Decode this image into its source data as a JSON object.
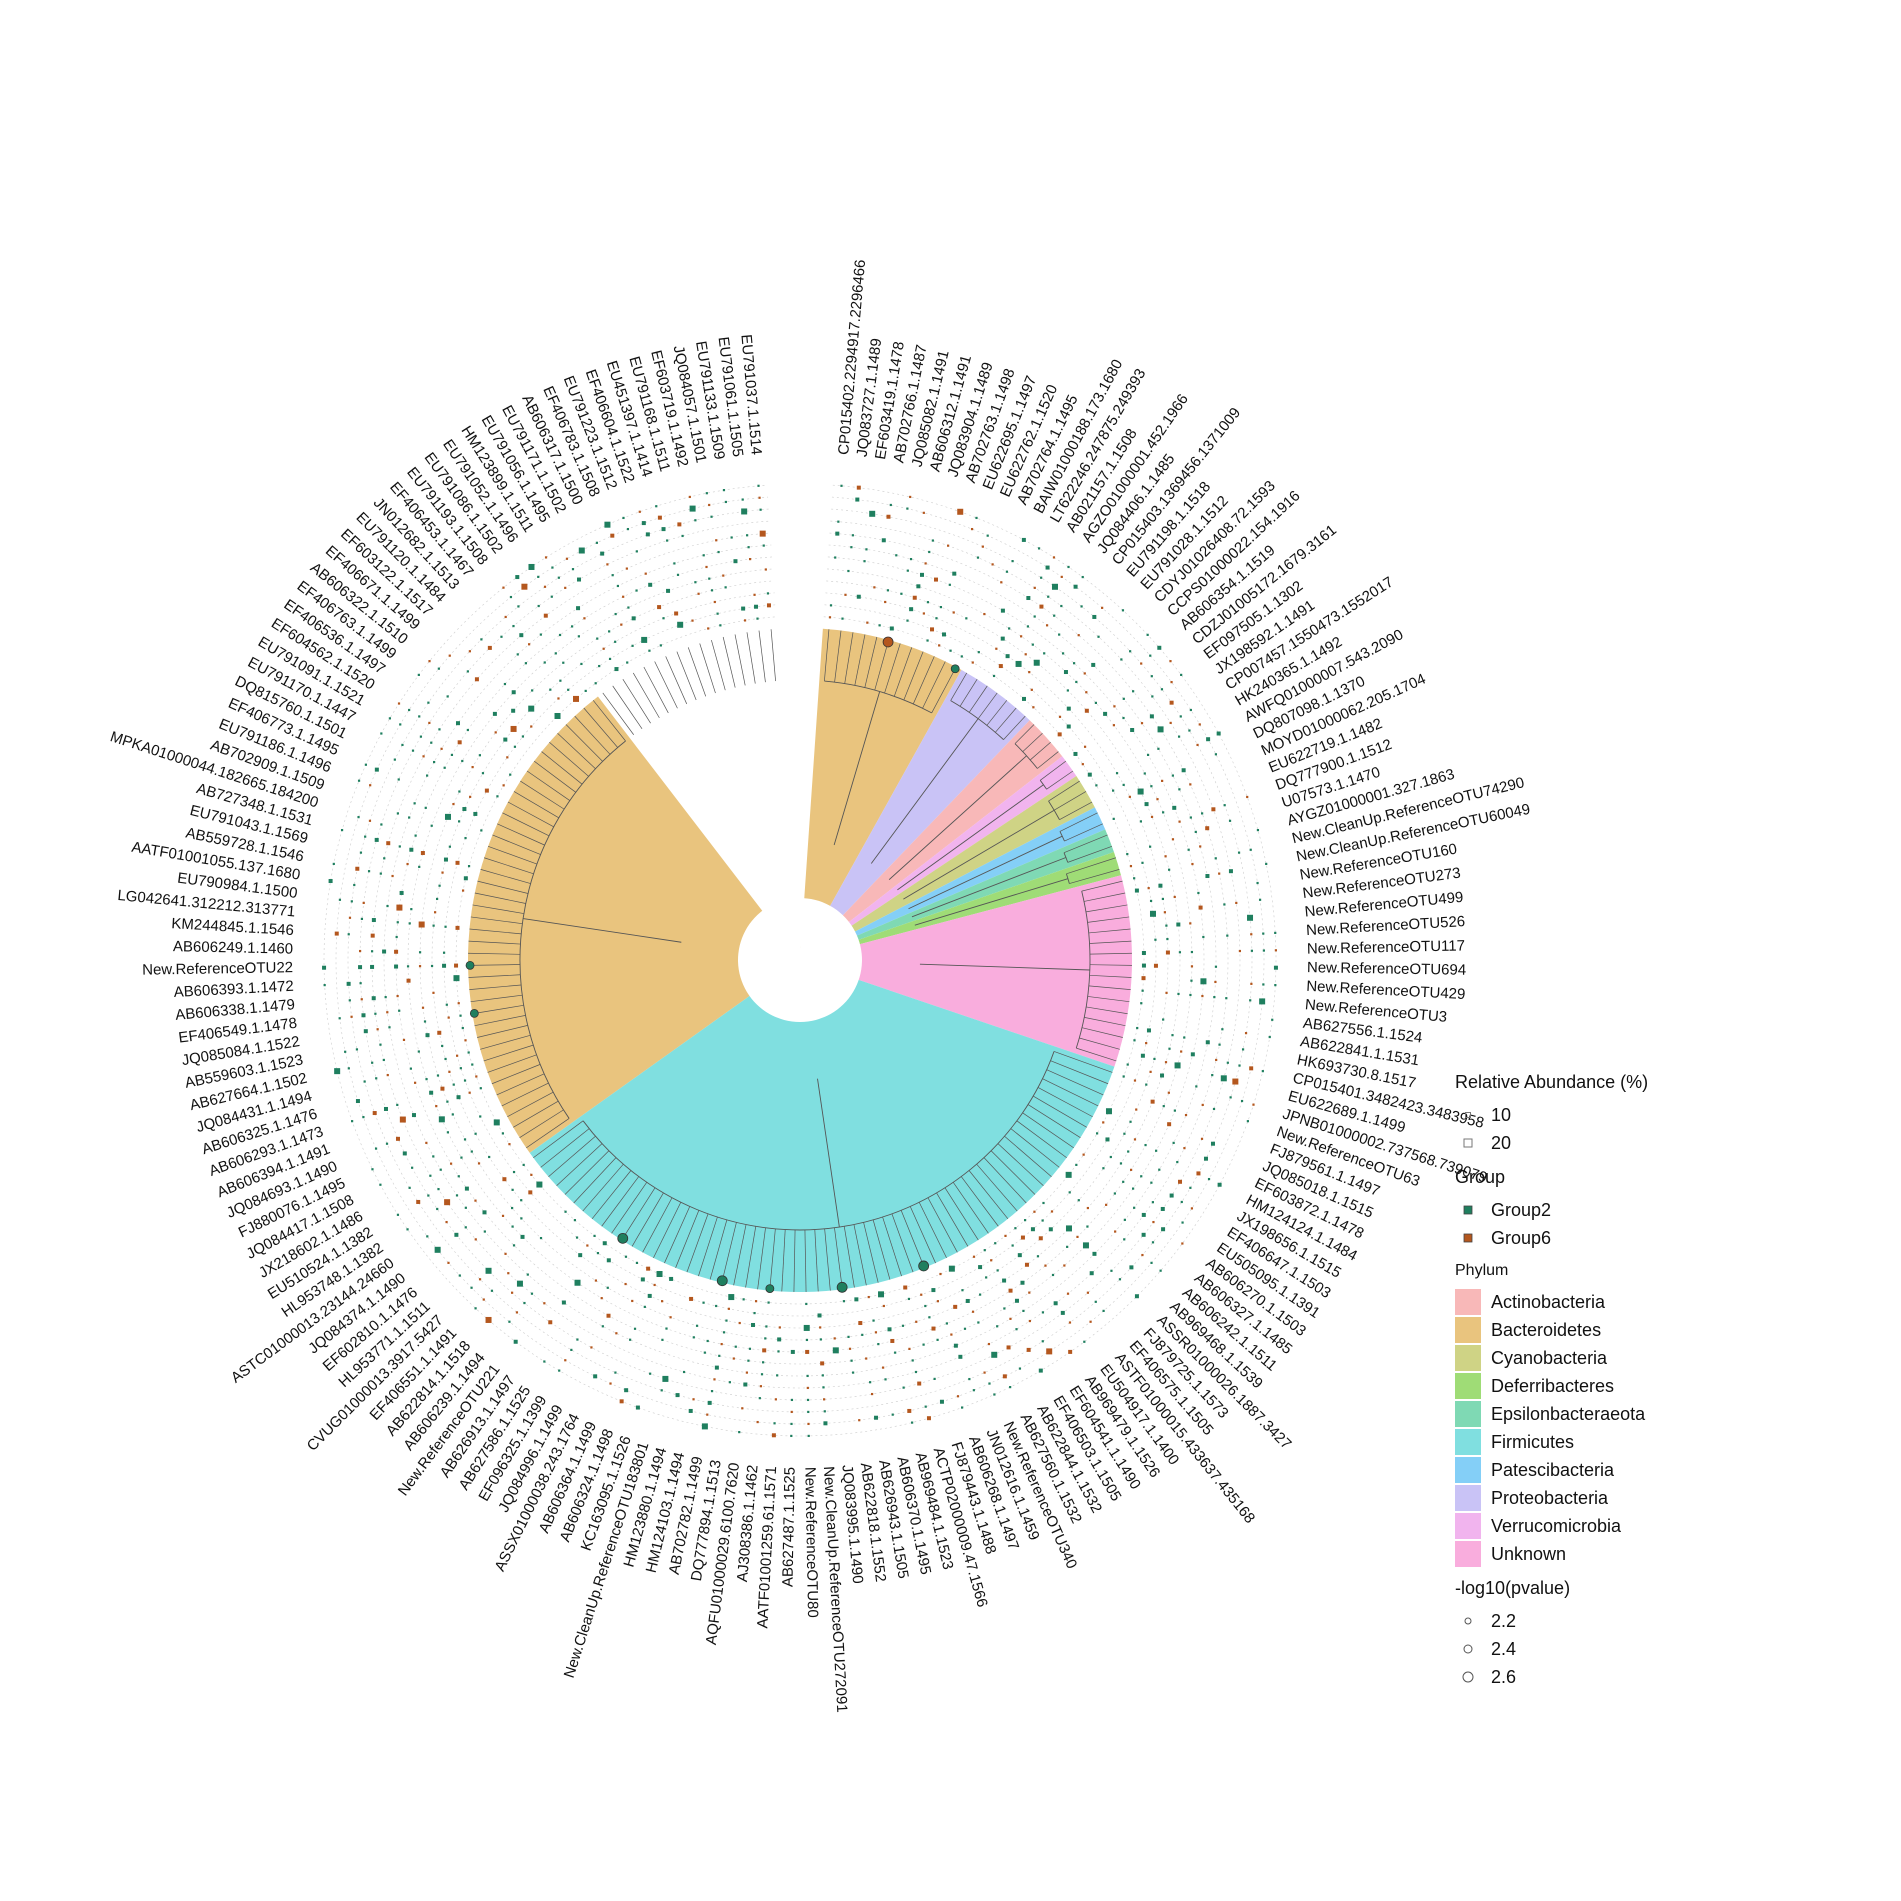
{
  "tips": [
    "CP015402.2294917.2296466",
    "JQ083727.1.1489",
    "EF603419.1.1478",
    "AB702766.1.1487",
    "JQ085082.1.1491",
    "AB606312.1.1491",
    "JQ083904.1.1489",
    "AB702763.1.1498",
    "EU622695.1.1497",
    "EU622762.1.1520",
    "AB702764.1.1495",
    "BAIW01000188.173.1680",
    "LT622246.247875.249393",
    "AB021157.1.1508",
    "AGZO01000001.452.1966",
    "JQ084406.1.1485",
    "CP015403.1369456.1371009",
    "EU791198.1.1518",
    "EU791028.1.1512",
    "CDYJ01026408.72.1593",
    "CCPS01000022.154.1916",
    "AB606354.1.1519",
    "CDZJ01005172.1679.3161",
    "EF097505.1.1302",
    "JX198592.1.1491",
    "CP007457.1550473.1552017",
    "HK240365.1.1492",
    "AWFQ01000007.543.2090",
    "DQ807098.1.1370",
    "MOYD01000062.205.1704",
    "EU622719.1.1482",
    "DQ777900.1.1512",
    "U07573.1.1470",
    "AYGZ01000001.327.1863",
    "New.CleanUp.ReferenceOTU74290",
    "New.CleanUp.ReferenceOTU60049",
    "New.ReferenceOTU160",
    "New.ReferenceOTU273",
    "New.ReferenceOTU499",
    "New.ReferenceOTU526",
    "New.ReferenceOTU117",
    "New.ReferenceOTU694",
    "New.ReferenceOTU429",
    "New.ReferenceOTU3",
    "AB627556.1.1524",
    "AB622841.1.1531",
    "HK693730.8.1517",
    "CP015401.3482423.3483958",
    "EU622689.1.1499",
    "JPNB01000002.737568.739079",
    "New.ReferenceOTU63",
    "FJ879561.1.1497",
    "JQ085018.1.1515",
    "EF603872.1.1478",
    "HM124124.1.1484",
    "JX198656.1.1515",
    "EF406647.1.1503",
    "EU505095.1.1391",
    "AB606270.1.1503",
    "AB606327.1.1485",
    "AB606242.1.1511",
    "AB969468.1.1539",
    "ASSR01000026.1887.3427",
    "FJ879725.1.1573",
    "EF406575.1.1505",
    "ASTF01000015.433637.435168",
    "EU504917.1.1400",
    "AB969479.1.1526",
    "EF604541.1.1490",
    "EF406503.1.1505",
    "AB622844.1.1532",
    "AB627560.1.1532",
    "New.ReferenceOTU340",
    "JN012616.1.1459",
    "AB606268.1.1497",
    "FJ879443.1.1488",
    "ACTP02000009.47.1566",
    "AB969484.1.1523",
    "AB606370.1.1495",
    "AB626943.1.1505",
    "AB622818.1.1552",
    "JQ083995.1.1490",
    "New.CleanUp.ReferenceOTU272091",
    "New.ReferenceOTU80",
    "AB627487.1.1525",
    "AATF01001259.61.1571",
    "AJ308386.1.1462",
    "AQFU01000029.6100.7620",
    "DQ777894.1.1513",
    "AB702782.1.1499",
    "HM124103.1.1494",
    "HM123880.1.1494",
    "New.CleanUp.ReferenceOTU183801",
    "KC163095.1.1526",
    "AB606324.1.1498",
    "AB606364.1.1499",
    "ASSX01000038.243.1764",
    "JQ084996.1.1499",
    "EF096325.1.1399",
    "AB627586.1.1525",
    "AB626913.1.1497",
    "New.ReferenceOTU221",
    "AB606239.1.1494",
    "AB622814.1.1518",
    "EF406551.1.1491",
    "CVUG01000013.3917.5427",
    "HL953771.1.1511",
    "EF602810.1.1476",
    "JQ084374.1.1490",
    "ASTC01000013.23144.24660",
    "HL953748.1.1382",
    "EU510524.1.1382",
    "JX218602.1.1486",
    "JQ084417.1.1508",
    "FJ880076.1.1495",
    "JQ084693.1.1490",
    "AB606394.1.1491",
    "AB606293.1.1473",
    "AB606325.1.1476",
    "JQ084431.1.1494",
    "AB627664.1.1502",
    "AB559603.1.1523",
    "JQ085084.1.1522",
    "EF406549.1.1478",
    "AB606338.1.1479",
    "AB606393.1.1472",
    "New.ReferenceOTU22",
    "AB606249.1.1460",
    "KM244845.1.1546",
    "LG042641.312212.313771",
    "EU790984.1.1500",
    "AATF01001055.137.1680",
    "AB559728.1.1546",
    "EU791043.1.1569",
    "AB727348.1.1531",
    "MPKA01000044.182665.184200",
    "AB702909.1.1509",
    "EU791186.1.1496",
    "EF406773.1.1495",
    "DQ815760.1.1501",
    "EU791170.1.1447",
    "EU791091.1.1521",
    "EF604562.1.1520",
    "EF406536.1.1497",
    "EF406763.1.1499",
    "AB606322.1.1510",
    "EF406671.1.1499",
    "EF603122.1.1517",
    "EU791120.1.1484",
    "JN012682.1.1513",
    "EF406453.1.1467",
    "EU791193.1.1508",
    "EU791086.1.1502",
    "EU791052.1.1496",
    "HM123899.1.1511",
    "EU791056.1.1495",
    "EU791171.1.1502",
    "AB606317.1.1500",
    "EF406783.1.1508",
    "EU791223.1.1512",
    "EF406604.1.1522",
    "EU451397.1.1414",
    "EU791168.1.1511",
    "EF603719.1.1492",
    "JQ084057.1.1501",
    "EU791133.1.1509",
    "EU791061.1.1505",
    "EU791037.1.1514"
  ],
  "phylum_colors": {
    "Actinobacteria": "#f8b8b8",
    "Bacteroidetes": "#e9c47e",
    "Cyanobacteria": "#cfd385",
    "Deferribacteres": "#9fdc76",
    "Epsilonbacteraeota": "#7fd9b4",
    "Firmicutes": "#80dfe0",
    "Patescibacteria": "#84cff7",
    "Proteobacteria": "#c9c3f6",
    "Verrucomicrobia": "#f1b4ee",
    "Unknown": "#f9addd"
  },
  "group_colors": {
    "Group2": "#1f7f5f",
    "Group6": "#b4571e"
  },
  "legend": {
    "abundance_title": "Relative Abundance (%)",
    "abundance_items": [
      "10",
      "20"
    ],
    "group_title": "Group",
    "group_items": [
      "Group2",
      "Group6"
    ],
    "phylum_title": "Phylum",
    "phylum_items": [
      "Actinobacteria",
      "Bacteroidetes",
      "Cyanobacteria",
      "Deferribacteres",
      "Epsilonbacteraeota",
      "Firmicutes",
      "Patescibacteria",
      "Proteobacteria",
      "Verrucomicrobia",
      "Unknown"
    ],
    "pvalue_title": "-log10(pvalue)",
    "pvalue_items": [
      "2.2",
      "2.4",
      "2.6"
    ]
  }
}
